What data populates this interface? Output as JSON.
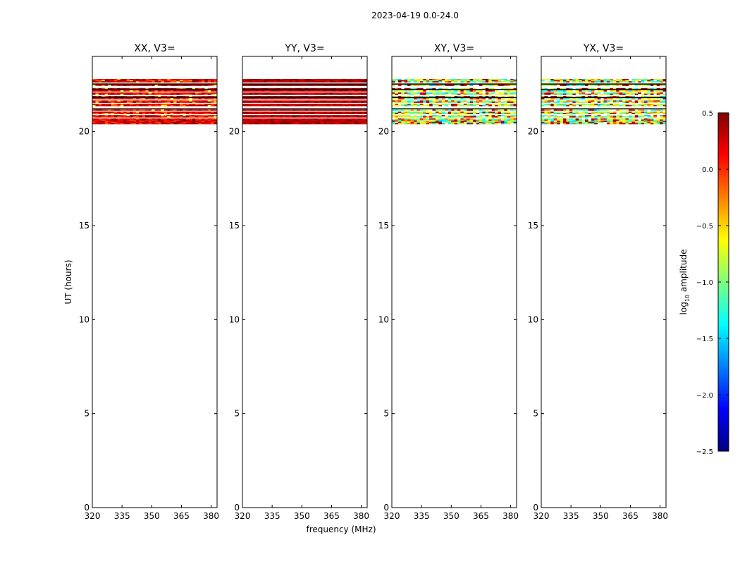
{
  "chart_data": {
    "type": "heatmap",
    "title": "2023-04-19 0.0-24.0",
    "xlabel": "frequency (MHz)",
    "ylabel": "UT (hours)",
    "xlim": [
      320,
      383
    ],
    "ylim": [
      0,
      24
    ],
    "x_ticks": [
      "320",
      "335",
      "350",
      "365",
      "380"
    ],
    "y_ticks": [
      "0",
      "5",
      "10",
      "15",
      "20"
    ],
    "data_time_range_hours": [
      20.4,
      22.8
    ],
    "panels": [
      {
        "title": "XX, V3=",
        "pattern": "high_red"
      },
      {
        "title": "YY, V3=",
        "pattern": "dark_red"
      },
      {
        "title": "XY, V3=",
        "pattern": "noisy"
      },
      {
        "title": "YX, V3=",
        "pattern": "noisy"
      }
    ],
    "colorbar": {
      "label": "log10 amplitude",
      "label_main": "log",
      "label_sub": "10",
      "label_rest": " amplitude",
      "range": [
        -2.5,
        0.5
      ],
      "ticks": [
        "0.5",
        "0.0",
        "−0.5",
        "−1.0",
        "−1.5",
        "−2.0",
        "−2.5"
      ],
      "colormap": "jet"
    }
  }
}
